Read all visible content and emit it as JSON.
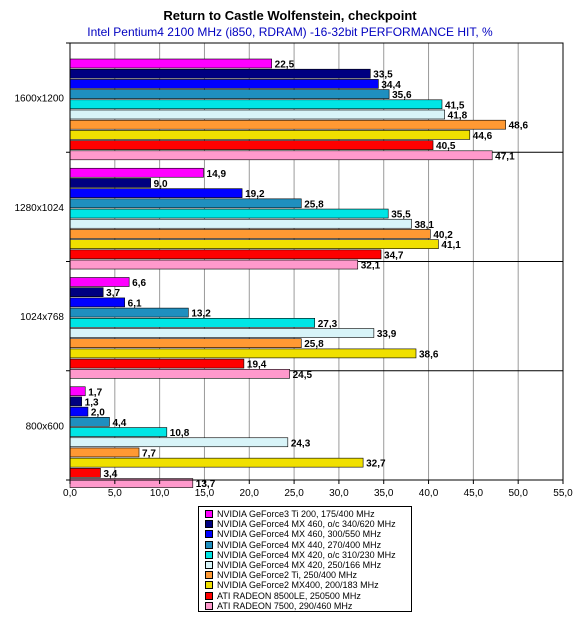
{
  "title": "Return to Castle Wolfenstein, checkpoint",
  "subtitle": "Intel Pentium4 2100 MHz (i850, RDRAM) -16-32bit PERFORMANCE HIT, %",
  "chart_data": {
    "type": "bar",
    "orientation": "horizontal",
    "title": "Return to Castle Wolfenstein, checkpoint",
    "subtitle": "Intel Pentium4 2100 MHz (i850, RDRAM) -16-32bit PERFORMANCE HIT, %",
    "categories": [
      "1600x1200",
      "1280x1024",
      "1024x768",
      "800x600"
    ],
    "xlim": [
      0,
      55
    ],
    "xticks": [
      "0,0",
      "5,0",
      "10,0",
      "15,0",
      "20,0",
      "25,0",
      "30,0",
      "35,0",
      "40,0",
      "45,0",
      "50,0",
      "55,0"
    ],
    "xtick_values": [
      0,
      5,
      10,
      15,
      20,
      25,
      30,
      35,
      40,
      45,
      50,
      55
    ],
    "grid": true,
    "legend_position": "bottom-center",
    "series": [
      {
        "name": "NVIDIA GeForce3 Ti 200, 175/400 MHz",
        "color": "#ff00ff",
        "values": [
          22.5,
          14.9,
          6.6,
          1.7
        ],
        "labels": [
          "22,5",
          "14,9",
          "6,6",
          "1,7"
        ]
      },
      {
        "name": "NVIDIA GeForce4 MX 460, o/c 340/620 MHz",
        "color": "#000080",
        "values": [
          33.5,
          9.0,
          3.7,
          1.3
        ],
        "labels": [
          "33,5",
          "9,0",
          "3,7",
          "1,3"
        ]
      },
      {
        "name": "NVIDIA GeForce4 MX 460, 300/550 MHz",
        "color": "#0000ff",
        "values": [
          34.4,
          19.2,
          6.1,
          2.0
        ],
        "labels": [
          "34,4",
          "19,2",
          "6,1",
          "2,0"
        ]
      },
      {
        "name": "NVIDIA GeForce4 MX 440, 270/400 MHz",
        "color": "#1f8fbf",
        "values": [
          35.6,
          25.8,
          13.2,
          4.4
        ],
        "labels": [
          "35,6",
          "25,8",
          "13,2",
          "4,4"
        ]
      },
      {
        "name": "NVIDIA GeForce4 MX 420, o/c 310/230 MHz",
        "color": "#00e5e5",
        "values": [
          41.5,
          35.5,
          27.3,
          10.8
        ],
        "labels": [
          "41,5",
          "35,5",
          "27,3",
          "10,8"
        ]
      },
      {
        "name": "NVIDIA GeForce4 MX 420, 250/166 MHz",
        "color": "#d8f4f8",
        "values": [
          41.8,
          38.1,
          33.9,
          24.3
        ],
        "labels": [
          "41,8",
          "38,1",
          "33,9",
          "24,3"
        ]
      },
      {
        "name": "NVIDIA GeForce2 Ti, 250/400 MHz",
        "color": "#ff9933",
        "values": [
          48.6,
          40.2,
          25.8,
          7.7
        ],
        "labels": [
          "48,6",
          "40,2",
          "25,8",
          "7,7"
        ]
      },
      {
        "name": "NVIDIA GeForce2 MX400, 200/183 MHz",
        "color": "#f0e000",
        "values": [
          44.6,
          41.1,
          38.6,
          32.7
        ],
        "labels": [
          "44,6",
          "41,1",
          "38,6",
          "32,7"
        ]
      },
      {
        "name": "ATI RADEON 8500LE, 250500 MHz",
        "color": "#ff0000",
        "values": [
          40.5,
          34.7,
          19.4,
          3.4
        ],
        "labels": [
          "40,5",
          "34,7",
          "19,4",
          "3,4"
        ]
      },
      {
        "name": "ATI RADEON 7500, 290/460 MHz",
        "color": "#ff99cc",
        "values": [
          47.1,
          32.1,
          24.5,
          13.7
        ],
        "labels": [
          "47,1",
          "32,1",
          "24,5",
          "13,7"
        ]
      }
    ]
  }
}
